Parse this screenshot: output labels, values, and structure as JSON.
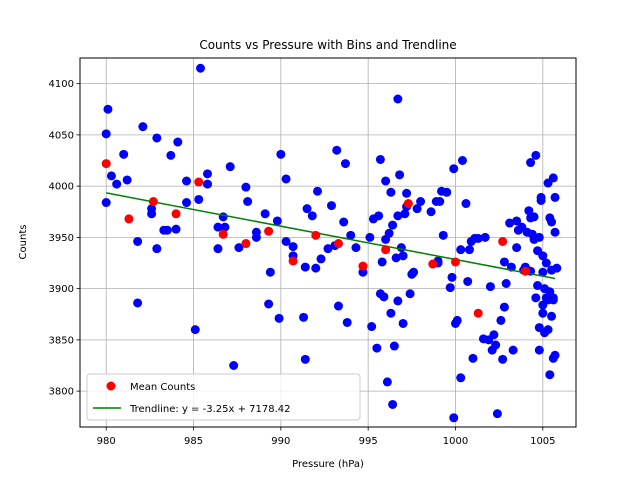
{
  "chart_data": {
    "type": "scatter",
    "title": "Counts vs Pressure with Bins and Trendline",
    "xlabel": "Pressure (hPa)",
    "ylabel": "Counts",
    "xlim": [
      978.5,
      1006.9
    ],
    "ylim": [
      3765,
      4125
    ],
    "xticks": [
      980,
      985,
      990,
      995,
      1000,
      1005
    ],
    "yticks": [
      3800,
      3850,
      3900,
      3950,
      4000,
      4050,
      4100
    ],
    "grid": true,
    "legend_position": "lower-left",
    "colors": {
      "raw": "#0000ff",
      "mean": "#ff0000",
      "trend": "#008000"
    },
    "series": [
      {
        "values": [
          [
            980.0,
            3984
          ],
          [
            980.0,
            4051
          ],
          [
            980.1,
            4075
          ],
          [
            980.3,
            4010
          ],
          [
            980.6,
            4002
          ],
          [
            981.0,
            4031
          ],
          [
            981.2,
            4006
          ],
          [
            981.8,
            3946
          ],
          [
            981.8,
            3886
          ],
          [
            982.1,
            4058
          ],
          [
            982.6,
            3978
          ],
          [
            982.6,
            3973
          ],
          [
            982.9,
            4047
          ],
          [
            982.9,
            3939
          ],
          [
            983.3,
            3957
          ],
          [
            983.5,
            3957
          ],
          [
            983.7,
            4030
          ],
          [
            984.0,
            3958
          ],
          [
            984.1,
            4043
          ],
          [
            984.6,
            4005
          ],
          [
            984.6,
            3984
          ],
          [
            985.1,
            3860
          ],
          [
            985.3,
            3987
          ],
          [
            985.4,
            4115
          ],
          [
            985.8,
            4002
          ],
          [
            985.8,
            4012
          ],
          [
            986.4,
            3960
          ],
          [
            986.4,
            3939
          ],
          [
            986.7,
            3970
          ],
          [
            986.8,
            3960
          ],
          [
            987.1,
            4019
          ],
          [
            987.3,
            3825
          ],
          [
            987.6,
            3940
          ],
          [
            988.0,
            3999
          ],
          [
            988.1,
            3985
          ],
          [
            988.6,
            3955
          ],
          [
            988.6,
            3950
          ],
          [
            989.1,
            3973
          ],
          [
            989.3,
            3885
          ],
          [
            989.4,
            3916
          ],
          [
            989.8,
            3966
          ],
          [
            989.9,
            3871
          ],
          [
            990.0,
            4031
          ],
          [
            990.3,
            4007
          ],
          [
            990.3,
            3946
          ],
          [
            990.7,
            3941
          ],
          [
            990.7,
            3932
          ],
          [
            991.3,
            3872
          ],
          [
            991.4,
            3921
          ],
          [
            991.4,
            3831
          ],
          [
            991.5,
            3978
          ],
          [
            991.8,
            3971
          ],
          [
            992.0,
            3920
          ],
          [
            992.1,
            3995
          ],
          [
            992.3,
            3929
          ],
          [
            992.7,
            3939
          ],
          [
            992.9,
            3981
          ],
          [
            993.1,
            3942
          ],
          [
            993.2,
            4035
          ],
          [
            993.3,
            3883
          ],
          [
            993.6,
            3965
          ],
          [
            993.7,
            4022
          ],
          [
            993.8,
            3867
          ],
          [
            994.0,
            3952
          ],
          [
            994.3,
            3940
          ],
          [
            994.7,
            3916
          ],
          [
            995.1,
            3950
          ],
          [
            995.2,
            3863
          ],
          [
            995.3,
            3968
          ],
          [
            995.5,
            3842
          ],
          [
            995.6,
            3971
          ],
          [
            995.7,
            4026
          ],
          [
            995.7,
            3895
          ],
          [
            995.8,
            3926
          ],
          [
            995.9,
            3892
          ],
          [
            996.0,
            3948
          ],
          [
            996.0,
            4005
          ],
          [
            996.1,
            3809
          ],
          [
            996.2,
            3954
          ],
          [
            996.3,
            3994
          ],
          [
            996.3,
            3876
          ],
          [
            996.4,
            3962
          ],
          [
            996.4,
            3787
          ],
          [
            996.5,
            3844
          ],
          [
            996.6,
            3930
          ],
          [
            996.7,
            4085
          ],
          [
            996.7,
            3971
          ],
          [
            996.7,
            3888
          ],
          [
            996.8,
            4011
          ],
          [
            996.9,
            3940
          ],
          [
            997.0,
            3932
          ],
          [
            997.0,
            3866
          ],
          [
            997.1,
            3973
          ],
          [
            997.2,
            3980
          ],
          [
            997.2,
            3993
          ],
          [
            997.4,
            3895
          ],
          [
            997.5,
            3914
          ],
          [
            997.6,
            3916
          ],
          [
            997.8,
            3978
          ],
          [
            998.0,
            3985
          ],
          [
            998.6,
            3975
          ],
          [
            998.9,
            3985
          ],
          [
            999.0,
            3925
          ],
          [
            999.0,
            3927
          ],
          [
            999.1,
            3985
          ],
          [
            999.2,
            3995
          ],
          [
            999.3,
            3952
          ],
          [
            999.5,
            3994
          ],
          [
            999.7,
            3901
          ],
          [
            999.8,
            3911
          ],
          [
            999.9,
            4017
          ],
          [
            999.9,
            3774
          ],
          [
            1000.0,
            3866
          ],
          [
            1000.1,
            3869
          ],
          [
            1000.3,
            3938
          ],
          [
            1000.3,
            3813
          ],
          [
            1000.4,
            4025
          ],
          [
            1000.6,
            3983
          ],
          [
            1000.7,
            3907
          ],
          [
            1000.8,
            3938
          ],
          [
            1000.9,
            3946
          ],
          [
            1001.0,
            3832
          ],
          [
            1001.1,
            3949
          ],
          [
            1001.3,
            3949
          ],
          [
            1001.6,
            3851
          ],
          [
            1001.7,
            3950
          ],
          [
            1001.9,
            3850
          ],
          [
            1002.0,
            3902
          ],
          [
            1002.1,
            3840
          ],
          [
            1002.2,
            3855
          ],
          [
            1002.3,
            3845
          ],
          [
            1002.4,
            3778
          ],
          [
            1002.6,
            3869
          ],
          [
            1002.7,
            3831
          ],
          [
            1002.8,
            3882
          ],
          [
            1002.8,
            3926
          ],
          [
            1002.9,
            3905
          ],
          [
            1003.1,
            3964
          ],
          [
            1003.2,
            3921
          ],
          [
            1003.3,
            3840
          ],
          [
            1003.5,
            3966
          ],
          [
            1003.5,
            3940
          ],
          [
            1003.6,
            3957
          ],
          [
            1003.8,
            3960
          ],
          [
            1003.9,
            3918
          ],
          [
            1004.0,
            3921
          ],
          [
            1004.1,
            3955
          ],
          [
            1004.2,
            3976
          ],
          [
            1004.3,
            3969
          ],
          [
            1004.3,
            4023
          ],
          [
            1004.3,
            3917
          ],
          [
            1004.4,
            3953
          ],
          [
            1004.5,
            3970
          ],
          [
            1004.5,
            3948
          ],
          [
            1004.6,
            3891
          ],
          [
            1004.6,
            4030
          ],
          [
            1004.7,
            3903
          ],
          [
            1004.7,
            3937
          ],
          [
            1004.8,
            3950
          ],
          [
            1004.8,
            3862
          ],
          [
            1004.8,
            3840
          ],
          [
            1004.9,
            3989
          ],
          [
            1004.9,
            3986
          ],
          [
            1005.0,
            3884
          ],
          [
            1005.0,
            3876
          ],
          [
            1005.0,
            3916
          ],
          [
            1005.0,
            3932
          ],
          [
            1005.1,
            3857
          ],
          [
            1005.1,
            3900
          ],
          [
            1005.2,
            3925
          ],
          [
            1005.2,
            3891
          ],
          [
            1005.3,
            3889
          ],
          [
            1005.3,
            4003
          ],
          [
            1005.3,
            3860
          ],
          [
            1005.4,
            3897
          ],
          [
            1005.4,
            3816
          ],
          [
            1005.4,
            3969
          ],
          [
            1005.5,
            3873
          ],
          [
            1005.5,
            3918
          ],
          [
            1005.5,
            3965
          ],
          [
            1005.6,
            3832
          ],
          [
            1005.6,
            3891
          ],
          [
            1005.6,
            3889
          ],
          [
            1005.6,
            4008
          ],
          [
            1005.7,
            3989
          ],
          [
            1005.7,
            3955
          ],
          [
            1005.7,
            3835
          ],
          [
            1005.8,
            3920
          ]
        ]
      },
      {
        "name": "Mean Counts",
        "values": [
          [
            980.0,
            4022
          ],
          [
            981.3,
            3968
          ],
          [
            982.7,
            3985
          ],
          [
            984.0,
            3973
          ],
          [
            985.3,
            4004
          ],
          [
            986.7,
            3953
          ],
          [
            988.0,
            3944
          ],
          [
            989.3,
            3956
          ],
          [
            990.7,
            3927
          ],
          [
            992.0,
            3952
          ],
          [
            993.3,
            3944
          ],
          [
            994.7,
            3922
          ],
          [
            996.0,
            3938
          ],
          [
            997.3,
            3983
          ],
          [
            998.7,
            3924
          ],
          [
            1000.0,
            3926
          ],
          [
            1001.3,
            3876
          ],
          [
            1002.7,
            3946
          ],
          [
            1004.0,
            3917
          ]
        ]
      }
    ],
    "trendline": {
      "label": "Trendline: y = -3.25x + 7178.42",
      "slope": -3.25,
      "intercept": 7178.42,
      "x_range": [
        980.0,
        1005.7
      ]
    }
  }
}
